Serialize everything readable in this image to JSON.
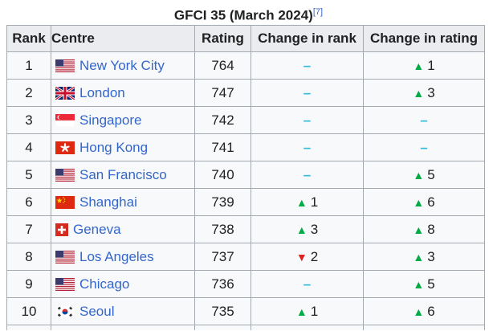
{
  "caption": {
    "title": "GFCI 35 (March 2024)",
    "ref": "[7]"
  },
  "headers": [
    "Rank",
    "Centre",
    "Rating",
    "Change in rank",
    "Change in rating"
  ],
  "rows": [
    {
      "rank": "1",
      "centre": "New York City",
      "flag": "us-flag-icon",
      "rating": "764",
      "rank_change": {
        "dir": "none",
        "value": ""
      },
      "rating_change": {
        "dir": "up",
        "value": "1"
      }
    },
    {
      "rank": "2",
      "centre": "London",
      "flag": "uk-flag-icon",
      "rating": "747",
      "rank_change": {
        "dir": "none",
        "value": ""
      },
      "rating_change": {
        "dir": "up",
        "value": "3"
      }
    },
    {
      "rank": "3",
      "centre": "Singapore",
      "flag": "sg-flag-icon",
      "rating": "742",
      "rank_change": {
        "dir": "none",
        "value": ""
      },
      "rating_change": {
        "dir": "none",
        "value": ""
      }
    },
    {
      "rank": "4",
      "centre": "Hong Kong",
      "flag": "hk-flag-icon",
      "rating": "741",
      "rank_change": {
        "dir": "none",
        "value": ""
      },
      "rating_change": {
        "dir": "none",
        "value": ""
      }
    },
    {
      "rank": "5",
      "centre": "San Francisco",
      "flag": "us-flag-icon",
      "rating": "740",
      "rank_change": {
        "dir": "none",
        "value": ""
      },
      "rating_change": {
        "dir": "up",
        "value": "5"
      }
    },
    {
      "rank": "6",
      "centre": "Shanghai",
      "flag": "cn-flag-icon",
      "rating": "739",
      "rank_change": {
        "dir": "up",
        "value": "1"
      },
      "rating_change": {
        "dir": "up",
        "value": "6"
      }
    },
    {
      "rank": "7",
      "centre": "Geneva",
      "flag": "ch-flag-icon",
      "rating": "738",
      "rank_change": {
        "dir": "up",
        "value": "3"
      },
      "rating_change": {
        "dir": "up",
        "value": "8"
      }
    },
    {
      "rank": "8",
      "centre": "Los Angeles",
      "flag": "us-flag-icon",
      "rating": "737",
      "rank_change": {
        "dir": "down",
        "value": "2"
      },
      "rating_change": {
        "dir": "up",
        "value": "3"
      }
    },
    {
      "rank": "9",
      "centre": "Chicago",
      "flag": "us-flag-icon",
      "rating": "736",
      "rank_change": {
        "dir": "none",
        "value": ""
      },
      "rating_change": {
        "dir": "up",
        "value": "5"
      }
    },
    {
      "rank": "10",
      "centre": "Seoul",
      "flag": "kr-flag-icon",
      "rating": "735",
      "rank_change": {
        "dir": "up",
        "value": "1"
      },
      "rating_change": {
        "dir": "up",
        "value": "6"
      }
    }
  ],
  "symbols": {
    "up": "▲",
    "down": "▼",
    "none": "–"
  },
  "colors": {
    "link": "#3366cc",
    "up": "#00aa44",
    "down": "#dd2222",
    "dash": "#33bbdd",
    "header_bg": "#eaecf0",
    "border": "#a2a9b1"
  }
}
